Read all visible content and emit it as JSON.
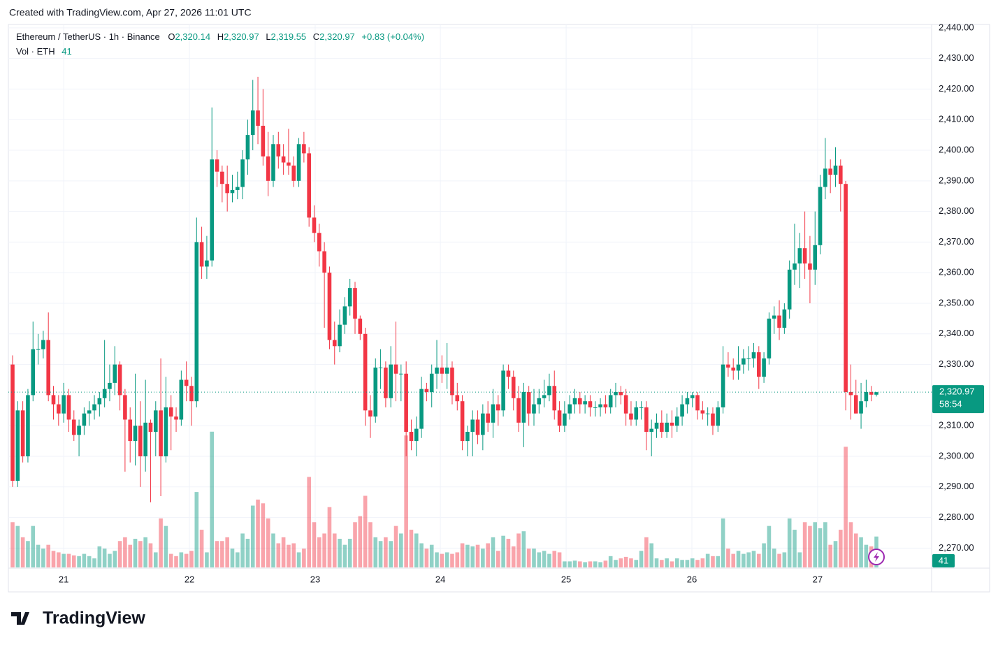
{
  "chart_data": {
    "type": "candlestick",
    "credit": "Created with TradingView.com, Apr 27, 2026 11:01 UTC",
    "symbol": "Ethereum / TetherUS · 1h · Binance",
    "legend_ohlc": [
      {
        "key": "O",
        "value": "2,320.14"
      },
      {
        "key": "H",
        "value": "2,320.97"
      },
      {
        "key": "L",
        "value": "2,319.55"
      },
      {
        "key": "C",
        "value": "2,320.97"
      }
    ],
    "change": "+0.83 (+0.04%)",
    "volume_label": "Vol · ETH",
    "last_price_label": "2,320.97",
    "countdown": "58:54",
    "brand": "TradingView",
    "up_color": "#089981",
    "down_color": "#f23645",
    "ylim": [
      2263.7,
      2441.1
    ],
    "yticks": [
      {
        "value": 2270,
        "label": "2,270.00"
      },
      {
        "value": 2280,
        "label": "2,280.00"
      },
      {
        "value": 2290,
        "label": "2,290.00"
      },
      {
        "value": 2300,
        "label": "2,300.00"
      },
      {
        "value": 2310,
        "label": "2,310.00"
      },
      {
        "value": 2330,
        "label": "2,330.00"
      },
      {
        "value": 2340,
        "label": "2,340.00"
      },
      {
        "value": 2350,
        "label": "2,350.00"
      },
      {
        "value": 2360,
        "label": "2,360.00"
      },
      {
        "value": 2370,
        "label": "2,370.00"
      },
      {
        "value": 2380,
        "label": "2,380.00"
      },
      {
        "value": 2390,
        "label": "2,390.00"
      },
      {
        "value": 2400,
        "label": "2,400.00"
      },
      {
        "value": 2410,
        "label": "2,410.00"
      },
      {
        "value": 2420,
        "label": "2,420.00"
      },
      {
        "value": 2430,
        "label": "2,430.00"
      },
      {
        "value": 2440,
        "label": "2,440.00"
      }
    ],
    "xticks": [
      {
        "value": 10,
        "label": "21"
      },
      {
        "value": 34.6,
        "label": "22"
      },
      {
        "value": 59.2,
        "label": "23"
      },
      {
        "value": 83.7,
        "label": "24"
      },
      {
        "value": 108.3,
        "label": "25"
      },
      {
        "value": 132.9,
        "label": "26"
      },
      {
        "value": 157.5,
        "label": "27"
      }
    ],
    "vlim": [
      0,
      215
    ],
    "grid": true,
    "ohlc": [
      [
        2330,
        2333,
        2290,
        2292
      ],
      [
        2292,
        2318,
        2290,
        2315
      ],
      [
        2315,
        2318,
        2298,
        2300
      ],
      [
        2300,
        2322,
        2298,
        2320
      ],
      [
        2320,
        2344,
        2318,
        2335
      ],
      [
        2335,
        2340,
        2330,
        2335
      ],
      [
        2335,
        2341,
        2332,
        2338
      ],
      [
        2338,
        2347,
        2318,
        2320
      ],
      [
        2320,
        2323,
        2312,
        2317
      ],
      [
        2317,
        2320,
        2310,
        2314
      ],
      [
        2314,
        2324,
        2311,
        2320
      ],
      [
        2320,
        2322,
        2308,
        2312
      ],
      [
        2312,
        2315,
        2305,
        2307
      ],
      [
        2307,
        2312,
        2300,
        2310
      ],
      [
        2310,
        2316,
        2307,
        2314
      ],
      [
        2314,
        2318,
        2310,
        2315
      ],
      [
        2315,
        2320,
        2312,
        2317
      ],
      [
        2317,
        2321,
        2313,
        2319
      ],
      [
        2319,
        2338,
        2316,
        2322
      ],
      [
        2322,
        2330,
        2318,
        2324
      ],
      [
        2324,
        2336,
        2320,
        2330
      ],
      [
        2330,
        2331,
        2315,
        2320
      ],
      [
        2320,
        2322,
        2295,
        2312
      ],
      [
        2312,
        2316,
        2298,
        2305
      ],
      [
        2305,
        2327,
        2297,
        2310
      ],
      [
        2310,
        2318,
        2290,
        2300
      ],
      [
        2300,
        2325,
        2295,
        2311
      ],
      [
        2311,
        2312,
        2285,
        2308
      ],
      [
        2308,
        2318,
        2300,
        2315
      ],
      [
        2315,
        2332,
        2287,
        2300
      ],
      [
        2300,
        2326,
        2298,
        2316
      ],
      [
        2316,
        2320,
        2302,
        2313
      ],
      [
        2313,
        2316,
        2308,
        2312
      ],
      [
        2312,
        2328,
        2310,
        2325
      ],
      [
        2325,
        2331,
        2318,
        2323
      ],
      [
        2323,
        2326,
        2310,
        2318
      ],
      [
        2318,
        2378,
        2316,
        2370
      ],
      [
        2370,
        2375,
        2358,
        2362
      ],
      [
        2362,
        2372,
        2358,
        2364
      ],
      [
        2364,
        2414,
        2362,
        2397
      ],
      [
        2397,
        2400,
        2388,
        2393
      ],
      [
        2393,
        2395,
        2383,
        2389
      ],
      [
        2389,
        2395,
        2380,
        2386
      ],
      [
        2386,
        2392,
        2383,
        2387
      ],
      [
        2387,
        2393,
        2384,
        2388
      ],
      [
        2388,
        2400,
        2384,
        2397
      ],
      [
        2397,
        2410,
        2392,
        2405
      ],
      [
        2405,
        2423,
        2400,
        2413
      ],
      [
        2413,
        2424,
        2402,
        2408
      ],
      [
        2408,
        2420,
        2395,
        2398
      ],
      [
        2398,
        2406,
        2385,
        2390
      ],
      [
        2390,
        2405,
        2388,
        2402
      ],
      [
        2402,
        2406,
        2394,
        2398
      ],
      [
        2398,
        2402,
        2392,
        2396
      ],
      [
        2396,
        2407,
        2392,
        2395
      ],
      [
        2395,
        2398,
        2388,
        2390
      ],
      [
        2390,
        2404,
        2388,
        2402
      ],
      [
        2402,
        2406,
        2396,
        2399
      ],
      [
        2399,
        2401,
        2375,
        2378
      ],
      [
        2378,
        2382,
        2370,
        2373
      ],
      [
        2373,
        2376,
        2362,
        2367
      ],
      [
        2367,
        2370,
        2342,
        2360
      ],
      [
        2360,
        2362,
        2335,
        2338
      ],
      [
        2338,
        2344,
        2330,
        2336
      ],
      [
        2336,
        2348,
        2334,
        2343
      ],
      [
        2343,
        2352,
        2340,
        2349
      ],
      [
        2349,
        2358,
        2346,
        2355
      ],
      [
        2355,
        2357,
        2340,
        2345
      ],
      [
        2345,
        2346,
        2338,
        2340
      ],
      [
        2340,
        2342,
        2310,
        2315
      ],
      [
        2315,
        2320,
        2306,
        2313
      ],
      [
        2313,
        2332,
        2311,
        2329
      ],
      [
        2329,
        2335,
        2322,
        2329
      ],
      [
        2329,
        2331,
        2316,
        2319
      ],
      [
        2319,
        2336,
        2316,
        2330
      ],
      [
        2330,
        2344,
        2318,
        2327
      ],
      [
        2327,
        2330,
        2318,
        2327
      ],
      [
        2327,
        2331,
        2300,
        2308
      ],
      [
        2308,
        2312,
        2302,
        2305
      ],
      [
        2305,
        2313,
        2300,
        2309
      ],
      [
        2309,
        2326,
        2306,
        2322
      ],
      [
        2322,
        2324,
        2318,
        2321
      ],
      [
        2321,
        2330,
        2316,
        2327
      ],
      [
        2327,
        2338,
        2322,
        2329
      ],
      [
        2329,
        2333,
        2324,
        2327
      ],
      [
        2327,
        2337,
        2322,
        2329
      ],
      [
        2329,
        2331,
        2317,
        2320
      ],
      [
        2320,
        2324,
        2315,
        2318
      ],
      [
        2318,
        2320,
        2302,
        2305
      ],
      [
        2305,
        2310,
        2300,
        2308
      ],
      [
        2308,
        2315,
        2300,
        2312
      ],
      [
        2312,
        2315,
        2304,
        2307
      ],
      [
        2307,
        2317,
        2302,
        2314
      ],
      [
        2314,
        2318,
        2308,
        2311
      ],
      [
        2311,
        2322,
        2306,
        2317
      ],
      [
        2317,
        2320,
        2310,
        2315
      ],
      [
        2315,
        2330,
        2313,
        2328
      ],
      [
        2328,
        2330,
        2322,
        2326
      ],
      [
        2326,
        2328,
        2315,
        2319
      ],
      [
        2319,
        2323,
        2308,
        2311
      ],
      [
        2311,
        2324,
        2303,
        2321
      ],
      [
        2321,
        2323,
        2310,
        2314
      ],
      [
        2314,
        2322,
        2310,
        2317
      ],
      [
        2317,
        2322,
        2314,
        2319
      ],
      [
        2319,
        2325,
        2316,
        2320
      ],
      [
        2320,
        2327,
        2318,
        2323
      ],
      [
        2323,
        2328,
        2312,
        2315
      ],
      [
        2315,
        2318,
        2308,
        2310
      ],
      [
        2310,
        2318,
        2308,
        2314
      ],
      [
        2314,
        2320,
        2312,
        2317
      ],
      [
        2317,
        2322,
        2314,
        2319
      ],
      [
        2319,
        2321,
        2314,
        2317
      ],
      [
        2317,
        2320,
        2314,
        2318
      ],
      [
        2318,
        2320,
        2313,
        2316
      ],
      [
        2316,
        2318,
        2313,
        2316
      ],
      [
        2316,
        2319,
        2313,
        2317
      ],
      [
        2317,
        2320,
        2314,
        2316
      ],
      [
        2316,
        2322,
        2314,
        2320
      ],
      [
        2320,
        2324,
        2316,
        2321
      ],
      [
        2321,
        2323,
        2317,
        2320
      ],
      [
        2320,
        2322,
        2310,
        2314
      ],
      [
        2314,
        2318,
        2310,
        2312
      ],
      [
        2312,
        2318,
        2310,
        2316
      ],
      [
        2316,
        2318,
        2312,
        2316
      ],
      [
        2316,
        2318,
        2302,
        2308
      ],
      [
        2308,
        2312,
        2300,
        2309
      ],
      [
        2309,
        2314,
        2306,
        2311
      ],
      [
        2311,
        2315,
        2306,
        2308
      ],
      [
        2308,
        2314,
        2306,
        2311
      ],
      [
        2311,
        2315,
        2306,
        2310
      ],
      [
        2310,
        2316,
        2308,
        2313
      ],
      [
        2313,
        2320,
        2310,
        2317
      ],
      [
        2317,
        2321,
        2314,
        2319
      ],
      [
        2319,
        2321,
        2316,
        2320
      ],
      [
        2320,
        2321,
        2312,
        2315
      ],
      [
        2315,
        2318,
        2312,
        2314
      ],
      [
        2314,
        2316,
        2310,
        2314
      ],
      [
        2314,
        2316,
        2307,
        2310
      ],
      [
        2310,
        2318,
        2308,
        2316
      ],
      [
        2316,
        2336,
        2314,
        2330
      ],
      [
        2330,
        2334,
        2326,
        2329
      ],
      [
        2329,
        2332,
        2325,
        2328
      ],
      [
        2328,
        2336,
        2325,
        2330
      ],
      [
        2330,
        2335,
        2327,
        2332
      ],
      [
        2332,
        2336,
        2328,
        2332
      ],
      [
        2332,
        2337,
        2329,
        2334
      ],
      [
        2334,
        2336,
        2322,
        2326
      ],
      [
        2326,
        2334,
        2324,
        2332
      ],
      [
        2332,
        2347,
        2330,
        2345
      ],
      [
        2345,
        2349,
        2340,
        2346
      ],
      [
        2346,
        2351,
        2338,
        2342
      ],
      [
        2342,
        2350,
        2340,
        2348
      ],
      [
        2348,
        2364,
        2345,
        2361
      ],
      [
        2361,
        2376,
        2356,
        2363
      ],
      [
        2363,
        2373,
        2355,
        2368
      ],
      [
        2368,
        2380,
        2358,
        2363
      ],
      [
        2363,
        2372,
        2350,
        2361
      ],
      [
        2361,
        2380,
        2356,
        2369
      ],
      [
        2369,
        2392,
        2366,
        2388
      ],
      [
        2388,
        2404,
        2384,
        2394
      ],
      [
        2394,
        2397,
        2386,
        2392
      ],
      [
        2392,
        2401,
        2388,
        2395
      ],
      [
        2395,
        2397,
        2380,
        2389
      ],
      [
        2389,
        2390,
        2315,
        2321
      ],
      [
        2321,
        2330,
        2312,
        2320
      ],
      [
        2320,
        2325,
        2314,
        2314
      ],
      [
        2314,
        2324,
        2309,
        2318
      ],
      [
        2318,
        2325,
        2316,
        2321
      ],
      [
        2321,
        2323,
        2318,
        2320.14
      ],
      [
        2320.14,
        2320.97,
        2319.55,
        2320.97
      ]
    ],
    "volume": [
      60,
      55,
      40,
      35,
      55,
      30,
      25,
      30,
      22,
      20,
      18,
      18,
      16,
      15,
      18,
      15,
      12,
      28,
      25,
      18,
      22,
      35,
      40,
      30,
      38,
      35,
      40,
      32,
      20,
      65,
      55,
      18,
      15,
      20,
      18,
      22,
      100,
      50,
      20,
      180,
      35,
      35,
      40,
      25,
      20,
      45,
      38,
      82,
      90,
      85,
      65,
      45,
      32,
      40,
      30,
      32,
      20,
      25,
      120,
      60,
      40,
      45,
      80,
      45,
      38,
      30,
      38,
      60,
      68,
      95,
      60,
      40,
      35,
      40,
      35,
      55,
      45,
      175,
      50,
      45,
      32,
      25,
      30,
      20,
      18,
      20,
      18,
      20,
      32,
      30,
      28,
      30,
      25,
      32,
      40,
      22,
      42,
      38,
      28,
      45,
      48,
      25,
      25,
      20,
      22,
      18,
      22,
      20,
      8,
      8,
      9,
      8,
      7,
      8,
      8,
      7,
      9,
      15,
      10,
      12,
      14,
      12,
      10,
      22,
      40,
      32,
      12,
      10,
      12,
      8,
      12,
      10,
      10,
      12,
      10,
      12,
      18,
      15,
      15,
      65,
      25,
      18,
      22,
      18,
      20,
      22,
      18,
      32,
      55,
      25,
      18,
      20,
      65,
      50,
      20,
      60,
      55,
      60,
      52,
      60,
      30,
      35,
      50,
      160,
      60,
      45,
      40,
      30,
      28,
      41
    ]
  }
}
